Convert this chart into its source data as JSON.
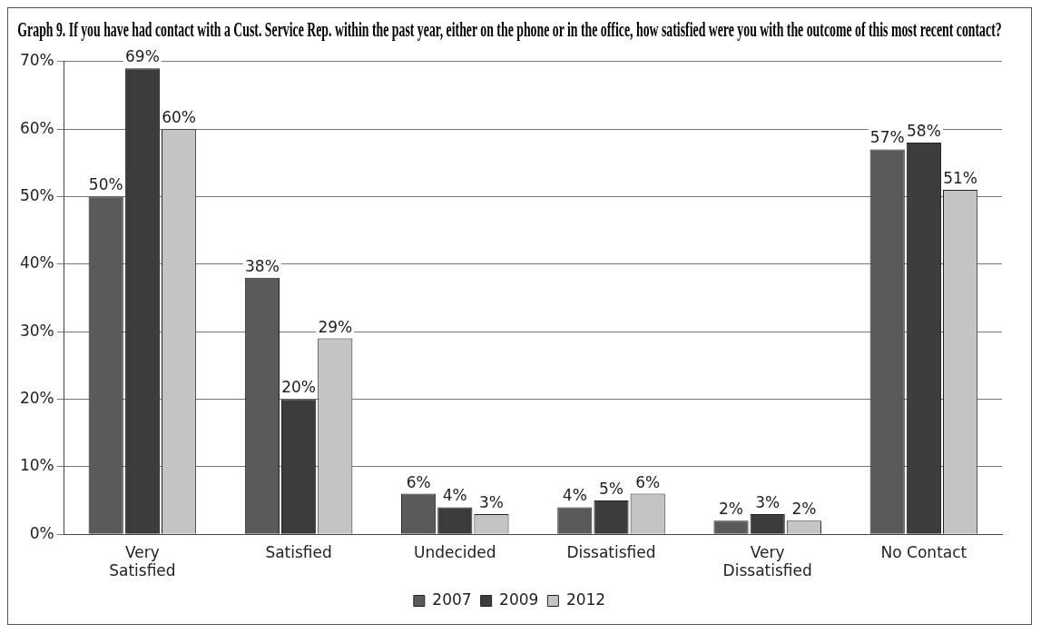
{
  "chart_data": {
    "type": "bar",
    "title": "Graph 9. If you have had contact with a Cust. Service Rep. within the past year, either on the phone or in the office, how satisfied were you with the outcome of this most recent contact?",
    "categories": [
      "Very Satisfied",
      "Satisfied",
      "Undecided",
      "Dissatisfied",
      "Very Dissatisfied",
      "No Contact"
    ],
    "series": [
      {
        "name": "2007",
        "color": "#5a5a5a",
        "values": [
          50,
          38,
          6,
          4,
          2,
          57
        ],
        "value_labels": [
          "50%",
          "38%",
          "6%",
          "4%",
          "2%",
          "57%"
        ]
      },
      {
        "name": "2009",
        "color": "#3c3c3c",
        "values": [
          69,
          20,
          4,
          5,
          3,
          58
        ],
        "value_labels": [
          "69%",
          "20%",
          "4%",
          "5%",
          "3%",
          "58%"
        ]
      },
      {
        "name": "2012",
        "color": "#c4c4c4",
        "values": [
          60,
          29,
          3,
          6,
          2,
          51
        ],
        "value_labels": [
          "60%",
          "29%",
          "3%",
          "6%",
          "2%",
          "51%"
        ]
      }
    ],
    "ylim": [
      0,
      70
    ],
    "yticks": [
      {
        "value": 0,
        "label": "0%"
      },
      {
        "value": 10,
        "label": "10%"
      },
      {
        "value": 20,
        "label": "20%"
      },
      {
        "value": 30,
        "label": "30%"
      },
      {
        "value": 40,
        "label": "40%"
      },
      {
        "value": 50,
        "label": "50%"
      },
      {
        "value": 60,
        "label": "60%"
      },
      {
        "value": 70,
        "label": "70%"
      }
    ],
    "grid": "y",
    "legend": "bottom"
  }
}
